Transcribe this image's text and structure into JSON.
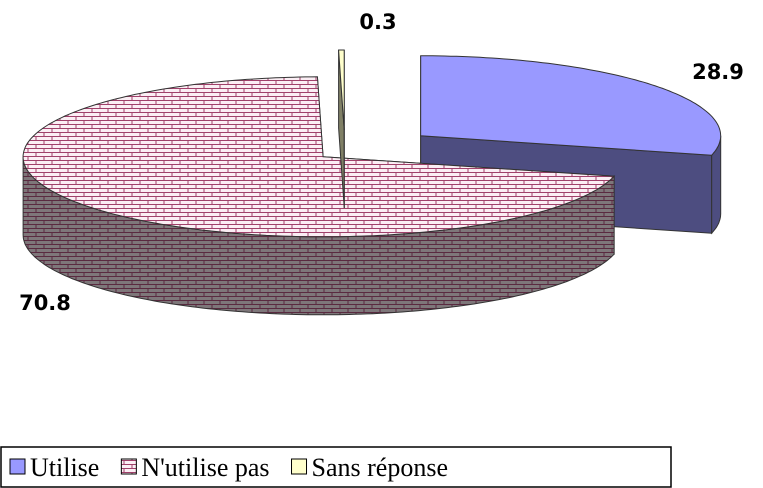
{
  "chart_data": {
    "type": "pie",
    "categories": [
      "Utilise",
      "N'utilise pas",
      "Sans réponse"
    ],
    "values": [
      28.9,
      70.8,
      0.3
    ],
    "colors": [
      "#9999ff",
      "#fbeef4",
      "#ffffcc"
    ],
    "patterns": [
      null,
      "brick",
      null
    ],
    "legend": "bottom"
  }
}
